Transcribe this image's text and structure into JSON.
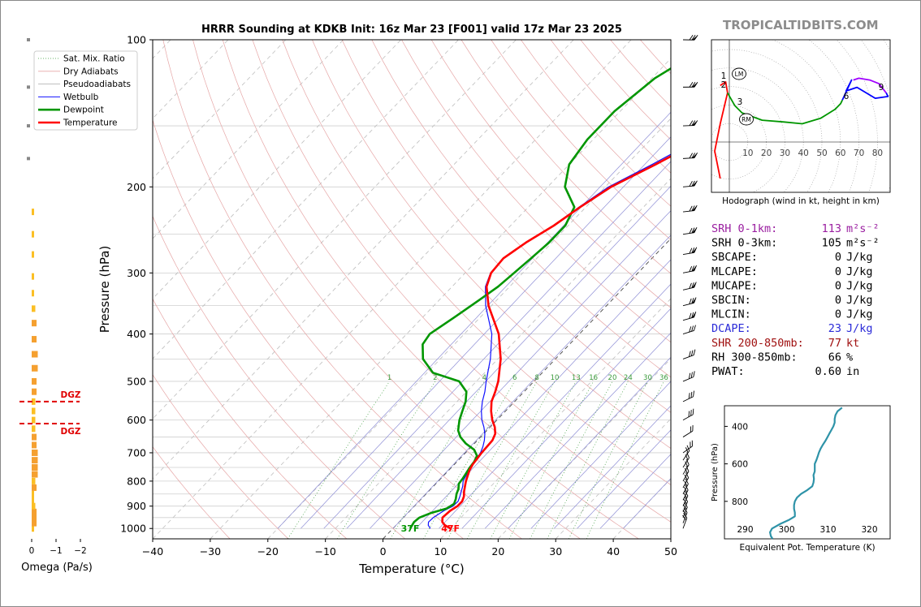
{
  "title": "HRRR Sounding at KDKB Init: 16z Mar 23 [F001] valid 17z Mar 23 2025",
  "brand": "TROPICALTIDBITS.COM",
  "chart_data": [
    {
      "type": "line",
      "name": "skewt",
      "xlabel": "Temperature (°C)",
      "ylabel": "Pressure (hPa)",
      "xlim": [
        -40,
        50
      ],
      "ylim": [
        1050,
        100
      ],
      "log_pressure": true,
      "x_ticks": [
        "−40",
        "−30",
        "−20",
        "−10",
        "0",
        "10",
        "20",
        "30",
        "40",
        "50"
      ],
      "y_ticks": [
        "100",
        "200",
        "300",
        "400",
        "500",
        "600",
        "700",
        "800",
        "900",
        "1000"
      ],
      "legend_placement": "top-left",
      "legend": [
        "Sat. Mix. Ratio",
        "Dry Adiabats",
        "Pseudoadiabats",
        "Wetbulb",
        "Dewpoint",
        "Temperature"
      ],
      "mixing_ratio_labels": [
        "1",
        "2",
        "4",
        "6",
        "8",
        "10",
        "13",
        "16",
        "20",
        "24",
        "30",
        "36"
      ],
      "surface_temp_label": "47F",
      "surface_dewpoint_label": "37F",
      "temperature": [
        [
          1000,
          10.0
        ],
        [
          985,
          8.5
        ],
        [
          970,
          7.5
        ],
        [
          950,
          6.8
        ],
        [
          920,
          7.0
        ],
        [
          900,
          7.5
        ],
        [
          880,
          7.5
        ],
        [
          860,
          7.0
        ],
        [
          840,
          6.2
        ],
        [
          820,
          5.5
        ],
        [
          800,
          4.8
        ],
        [
          780,
          4.2
        ],
        [
          760,
          3.6
        ],
        [
          740,
          3.2
        ],
        [
          720,
          3.0
        ],
        [
          700,
          2.8
        ],
        [
          680,
          2.7
        ],
        [
          660,
          2.6
        ],
        [
          640,
          2.0
        ],
        [
          620,
          0.8
        ],
        [
          600,
          -0.8
        ],
        [
          575,
          -2.5
        ],
        [
          550,
          -4.0
        ],
        [
          525,
          -5.0
        ],
        [
          500,
          -6.2
        ],
        [
          450,
          -9.5
        ],
        [
          400,
          -14.0
        ],
        [
          350,
          -20.5
        ],
        [
          320,
          -24.0
        ],
        [
          300,
          -25.5
        ],
        [
          280,
          -25.8
        ],
        [
          260,
          -24.5
        ],
        [
          240,
          -22.5
        ],
        [
          220,
          -21.0
        ],
        [
          200,
          -19.0
        ],
        [
          180,
          -15.0
        ],
        [
          160,
          -11.0
        ],
        [
          150,
          -10.0
        ],
        [
          140,
          -8.5
        ],
        [
          130,
          -6.5
        ],
        [
          120,
          -5.0
        ],
        [
          110,
          -2.5
        ],
        [
          100,
          0.0
        ]
      ],
      "dewpoint": [
        [
          1000,
          3.0
        ],
        [
          985,
          2.8
        ],
        [
          970,
          2.6
        ],
        [
          950,
          2.8
        ],
        [
          930,
          4.0
        ],
        [
          910,
          6.0
        ],
        [
          890,
          6.5
        ],
        [
          870,
          6.0
        ],
        [
          850,
          5.3
        ],
        [
          830,
          4.8
        ],
        [
          810,
          4.0
        ],
        [
          790,
          3.8
        ],
        [
          770,
          3.5
        ],
        [
          750,
          3.2
        ],
        [
          730,
          3.0
        ],
        [
          710,
          2.5
        ],
        [
          690,
          1.0
        ],
        [
          670,
          -1.5
        ],
        [
          650,
          -3.5
        ],
        [
          630,
          -5.0
        ],
        [
          600,
          -6.5
        ],
        [
          575,
          -7.5
        ],
        [
          550,
          -8.5
        ],
        [
          525,
          -10.0
        ],
        [
          500,
          -13.0
        ],
        [
          480,
          -19.0
        ],
        [
          450,
          -23.0
        ],
        [
          420,
          -25.5
        ],
        [
          400,
          -26.0
        ],
        [
          370,
          -24.5
        ],
        [
          340,
          -23.0
        ],
        [
          320,
          -22.0
        ],
        [
          300,
          -21.5
        ],
        [
          280,
          -21.0
        ],
        [
          260,
          -20.5
        ],
        [
          240,
          -20.5
        ],
        [
          220,
          -22.0
        ],
        [
          200,
          -27.0
        ],
        [
          180,
          -30.0
        ],
        [
          160,
          -31.0
        ],
        [
          140,
          -31.0
        ],
        [
          120,
          -29.5
        ],
        [
          100,
          -25.0
        ]
      ],
      "wetbulb": [
        [
          1000,
          6.5
        ],
        [
          985,
          5.6
        ],
        [
          970,
          5.1
        ],
        [
          950,
          5.2
        ],
        [
          920,
          5.9
        ],
        [
          900,
          6.7
        ],
        [
          880,
          6.8
        ],
        [
          860,
          6.3
        ],
        [
          840,
          5.7
        ],
        [
          820,
          5.1
        ],
        [
          800,
          4.3
        ],
        [
          780,
          3.9
        ],
        [
          760,
          3.5
        ],
        [
          740,
          3.1
        ],
        [
          720,
          2.9
        ],
        [
          700,
          2.6
        ],
        [
          680,
          2.0
        ],
        [
          660,
          1.2
        ],
        [
          640,
          0.2
        ],
        [
          620,
          -1.1
        ],
        [
          600,
          -2.6
        ],
        [
          575,
          -4.2
        ],
        [
          550,
          -5.6
        ],
        [
          525,
          -6.8
        ],
        [
          500,
          -8.3
        ],
        [
          450,
          -11.3
        ],
        [
          400,
          -15.2
        ],
        [
          350,
          -21.0
        ],
        [
          320,
          -24.2
        ],
        [
          300,
          -25.6
        ],
        [
          280,
          -25.8
        ],
        [
          260,
          -24.6
        ],
        [
          240,
          -22.6
        ],
        [
          220,
          -21.2
        ],
        [
          200,
          -19.4
        ],
        [
          180,
          -15.6
        ],
        [
          160,
          -11.7
        ],
        [
          150,
          -10.7
        ],
        [
          140,
          -9.2
        ],
        [
          130,
          -7.3
        ],
        [
          120,
          -5.7
        ],
        [
          110,
          -3.3
        ],
        [
          100,
          -0.8
        ]
      ],
      "wind_barbs_hPa": [
        1000,
        975,
        950,
        925,
        900,
        875,
        850,
        825,
        800,
        775,
        750,
        725,
        700,
        650,
        600,
        550,
        500,
        450,
        400,
        375,
        350,
        325,
        300,
        275,
        250,
        225,
        200,
        175,
        150,
        125,
        100
      ]
    },
    {
      "type": "bar",
      "name": "omega",
      "xlabel": "Omega (Pa/s)",
      "x_ticks": [
        "0",
        "−1",
        "−2"
      ],
      "xlim": [
        0,
        -2
      ],
      "dgz_label": "DGZ",
      "dgz_hPa": [
        550,
        610
      ],
      "values": [
        [
          1000,
          -0.1
        ],
        [
          975,
          -0.2
        ],
        [
          950,
          -0.2
        ],
        [
          925,
          -0.2
        ],
        [
          900,
          -0.15
        ],
        [
          875,
          -0.1
        ],
        [
          850,
          -0.1
        ],
        [
          825,
          -0.2
        ],
        [
          800,
          -0.15
        ],
        [
          775,
          -0.25
        ],
        [
          750,
          -0.25
        ],
        [
          725,
          -0.25
        ],
        [
          700,
          -0.25
        ],
        [
          675,
          -0.2
        ],
        [
          650,
          -0.2
        ],
        [
          625,
          -0.15
        ],
        [
          600,
          -0.15
        ],
        [
          575,
          -0.15
        ],
        [
          550,
          -0.15
        ],
        [
          525,
          -0.2
        ],
        [
          500,
          -0.2
        ],
        [
          470,
          -0.25
        ],
        [
          440,
          -0.25
        ],
        [
          410,
          -0.2
        ],
        [
          380,
          -0.2
        ],
        [
          355,
          -0.15
        ],
        [
          330,
          -0.1
        ],
        [
          305,
          -0.1
        ],
        [
          275,
          -0.1
        ],
        [
          250,
          -0.1
        ],
        [
          225,
          -0.1
        ],
        [
          200,
          0.0
        ],
        [
          175,
          0.0
        ],
        [
          150,
          0.0
        ],
        [
          125,
          0.0
        ],
        [
          100,
          0.0
        ]
      ]
    },
    {
      "type": "line",
      "name": "hodograph",
      "caption": "Hodograph (wind in kt, height in km)",
      "ring_labels": [
        "10",
        "20",
        "30",
        "40",
        "50",
        "60",
        "70",
        "80"
      ],
      "height_labels": [
        "1",
        "2",
        "3",
        "6",
        "9"
      ],
      "markers": [
        "LM",
        "RM"
      ],
      "segments": [
        {
          "color": "#ff0000",
          "points": [
            [
              -5,
              -20
            ],
            [
              -8,
              -5
            ],
            [
              -5,
              10
            ],
            [
              -1,
              27
            ],
            [
              -2,
              33
            ],
            [
              -5,
              31
            ]
          ]
        },
        {
          "color": "#009600",
          "points": [
            [
              -1,
              27
            ],
            [
              3,
              20
            ],
            [
              7,
              16
            ],
            [
              18,
              12
            ],
            [
              30,
              11
            ],
            [
              40,
              10
            ],
            [
              50,
              13
            ],
            [
              58,
              18
            ],
            [
              61,
              21
            ],
            [
              62,
              23
            ]
          ]
        },
        {
          "color": "#0000ff",
          "points": [
            [
              62,
              23
            ],
            [
              67,
              34
            ],
            [
              64,
              28
            ],
            [
              70,
              30
            ],
            [
              80,
              24
            ],
            [
              87,
              25
            ],
            [
              86,
              27
            ]
          ]
        },
        {
          "color": "#a000ff",
          "points": [
            [
              86,
              27
            ],
            [
              82,
              32
            ],
            [
              77,
              34
            ],
            [
              71,
              35
            ],
            [
              68,
              34
            ]
          ]
        }
      ]
    },
    {
      "type": "line",
      "name": "theta-e",
      "xlabel": "Equivalent Pot. Temperature (K)",
      "ylabel": "Pressure (hPa)",
      "x_ticks": [
        "290",
        "300",
        "310",
        "320"
      ],
      "y_ticks": [
        "400",
        "600",
        "800"
      ],
      "xlim": [
        285,
        325
      ],
      "ylim": [
        1000,
        290
      ],
      "values": [
        [
          1000,
          296.6
        ],
        [
          985,
          296.2
        ],
        [
          965,
          296.0
        ],
        [
          945,
          296.5
        ],
        [
          920,
          298.5
        ],
        [
          900,
          300.5
        ],
        [
          880,
          302.0
        ],
        [
          860,
          302.0
        ],
        [
          840,
          301.8
        ],
        [
          820,
          301.8
        ],
        [
          800,
          302.0
        ],
        [
          780,
          302.5
        ],
        [
          760,
          303.5
        ],
        [
          740,
          305.0
        ],
        [
          720,
          306.2
        ],
        [
          700,
          306.5
        ],
        [
          680,
          306.6
        ],
        [
          660,
          306.5
        ],
        [
          640,
          306.8
        ],
        [
          620,
          306.8
        ],
        [
          600,
          306.8
        ],
        [
          580,
          307.2
        ],
        [
          560,
          307.5
        ],
        [
          540,
          307.8
        ],
        [
          520,
          308.2
        ],
        [
          500,
          308.7
        ],
        [
          480,
          309.3
        ],
        [
          460,
          309.8
        ],
        [
          440,
          310.3
        ],
        [
          420,
          310.8
        ],
        [
          400,
          311.3
        ],
        [
          380,
          311.6
        ],
        [
          360,
          311.6
        ],
        [
          340,
          311.8
        ],
        [
          320,
          312.3
        ],
        [
          300,
          313.4
        ]
      ]
    }
  ],
  "indices": [
    {
      "label": "SRH 0-1km:",
      "value": "113",
      "unit": "m²s⁻²",
      "color": "#9a1ea0"
    },
    {
      "label": "SRH 0-3km:",
      "value": "105",
      "unit": "m²s⁻²",
      "color": "#000000"
    },
    {
      "label": "SBCAPE:",
      "value": "0",
      "unit": "J/kg",
      "color": "#000000"
    },
    {
      "label": "MLCAPE:",
      "value": "0",
      "unit": "J/kg",
      "color": "#000000"
    },
    {
      "label": "MUCAPE:",
      "value": "0",
      "unit": "J/kg",
      "color": "#000000"
    },
    {
      "label": "SBCIN:",
      "value": "0",
      "unit": "J/kg",
      "color": "#000000"
    },
    {
      "label": "MLCIN:",
      "value": "0",
      "unit": "J/kg",
      "color": "#000000"
    },
    {
      "label": "DCAPE:",
      "value": "23",
      "unit": "J/kg",
      "color": "#2a2ad8"
    },
    {
      "label": "SHR 200-850mb:",
      "value": "77",
      "unit": "kt",
      "color": "#a01010"
    },
    {
      "label": "RH 300-850mb:",
      "value": "66",
      "unit": "%",
      "color": "#000000"
    },
    {
      "label": "PWAT:",
      "value": "0.60",
      "unit": "in",
      "color": "#000000"
    }
  ]
}
